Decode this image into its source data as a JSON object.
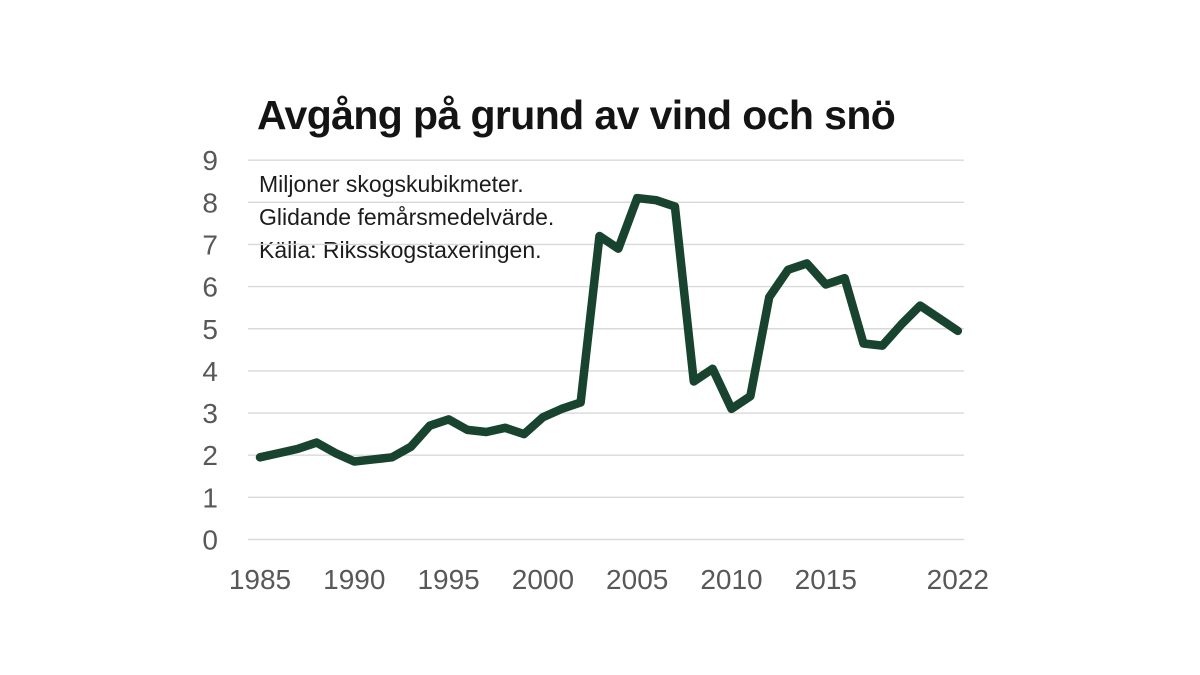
{
  "page": {
    "background_color": "#ffffff"
  },
  "header": {
    "title": "Avgång på grund av vind och snö"
  },
  "annotation": {
    "lines": [
      "Miljoner skogskubikmeter.",
      "Glidande femårsmedelvärde.",
      "Källa: Riksskogstaxeringen."
    ]
  },
  "chart_data": {
    "type": "line",
    "title": "Avgång på grund av vind och snö",
    "subtitle": "Miljoner skogskubikmeter. Glidande femårsmedelvärde.",
    "source": "Källa: Riksskogstaxeringen.",
    "xlabel": "",
    "ylabel": "Miljoner skogskubikmeter",
    "ylim": [
      0,
      9
    ],
    "ytick_step": 1,
    "xlim": [
      1984.4,
      2022.3
    ],
    "xticks": [
      1985,
      1990,
      1995,
      2000,
      2005,
      2010,
      2015,
      2022
    ],
    "grid": "horizontal",
    "legend": "none",
    "x": [
      1985,
      1986,
      1987,
      1988,
      1989,
      1990,
      1991,
      1992,
      1993,
      1994,
      1995,
      1996,
      1997,
      1998,
      1999,
      2000,
      2001,
      2002,
      2003,
      2004,
      2005,
      2006,
      2007,
      2008,
      2009,
      2010,
      2011,
      2012,
      2013,
      2014,
      2015,
      2016,
      2017,
      2018,
      2019,
      2020,
      2021,
      2022
    ],
    "values": [
      1.95,
      2.05,
      2.15,
      2.3,
      2.05,
      1.85,
      1.9,
      1.95,
      2.2,
      2.7,
      2.85,
      2.6,
      2.55,
      2.65,
      2.5,
      2.9,
      3.1,
      3.25,
      7.2,
      6.9,
      8.1,
      8.05,
      7.9,
      3.75,
      4.05,
      3.1,
      3.4,
      5.75,
      6.4,
      6.55,
      6.05,
      6.2,
      4.65,
      4.6,
      5.1,
      5.55,
      5.25,
      4.95
    ],
    "line_color": "#17432f",
    "line_width": 8.5,
    "grid_color": "#d9d9d9",
    "tick_label_color": "#58585a",
    "title_color": "#141414",
    "annotation_color": "#1c1c1c"
  }
}
